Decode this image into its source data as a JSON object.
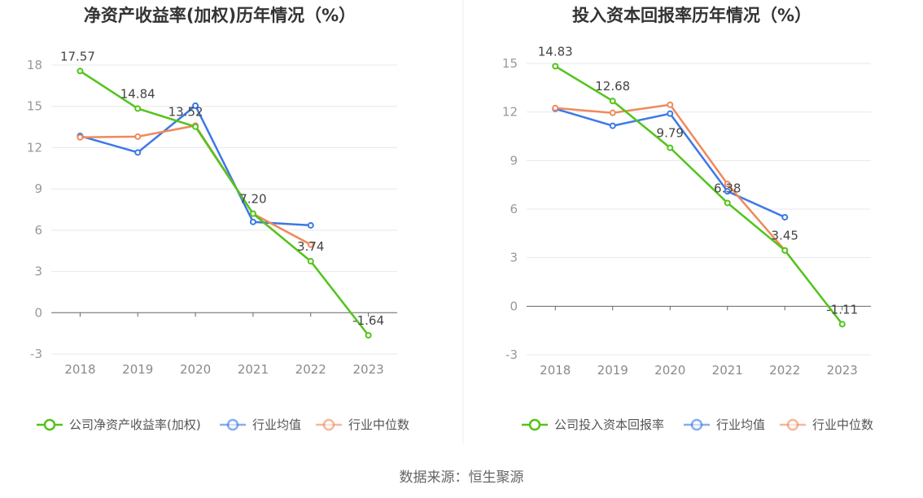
{
  "source": "数据来源：恒生聚源",
  "chart_data": [
    {
      "type": "line",
      "title": "净资产收益率(加权)历年情况（%）",
      "categories": [
        "2018",
        "2019",
        "2020",
        "2021",
        "2022",
        "2023"
      ],
      "ylim": [
        -3,
        18
      ],
      "yticks": [
        -3,
        0,
        3,
        6,
        9,
        12,
        15,
        18
      ],
      "grid": true,
      "legend_position": "bottom",
      "series": [
        {
          "name": "公司净资产收益率(加权)",
          "color": "#52c41a",
          "values": [
            17.57,
            14.84,
            13.52,
            7.2,
            3.74,
            -1.64
          ],
          "labels": [
            "17.57",
            "14.84",
            "13.52",
            "7.20",
            "3.74",
            "-1.64"
          ]
        },
        {
          "name": "行业均值",
          "color": "#3b78e7",
          "values": [
            12.85,
            11.65,
            15.05,
            6.6,
            6.35,
            null
          ]
        },
        {
          "name": "行业中位数",
          "color": "#f0895a",
          "values": [
            12.75,
            12.8,
            13.6,
            7.2,
            4.95,
            null
          ]
        }
      ]
    },
    {
      "type": "line",
      "title": "投入资本回报率历年情况（%）",
      "categories": [
        "2018",
        "2019",
        "2020",
        "2021",
        "2022",
        "2023"
      ],
      "ylim": [
        -3,
        15
      ],
      "yticks": [
        -3,
        0,
        3,
        6,
        9,
        12,
        15
      ],
      "grid": true,
      "legend_position": "bottom",
      "series": [
        {
          "name": "公司投入资本回报率",
          "color": "#52c41a",
          "values": [
            14.83,
            12.68,
            9.79,
            6.38,
            3.45,
            -1.11
          ],
          "labels": [
            "14.83",
            "12.68",
            "9.79",
            "6.38",
            "3.45",
            "-1.11"
          ]
        },
        {
          "name": "行业均值",
          "color": "#3b78e7",
          "values": [
            12.2,
            11.15,
            11.9,
            7.1,
            5.5,
            null
          ]
        },
        {
          "name": "行业中位数",
          "color": "#f0895a",
          "values": [
            12.25,
            11.95,
            12.45,
            7.55,
            3.45,
            null
          ]
        }
      ]
    }
  ]
}
